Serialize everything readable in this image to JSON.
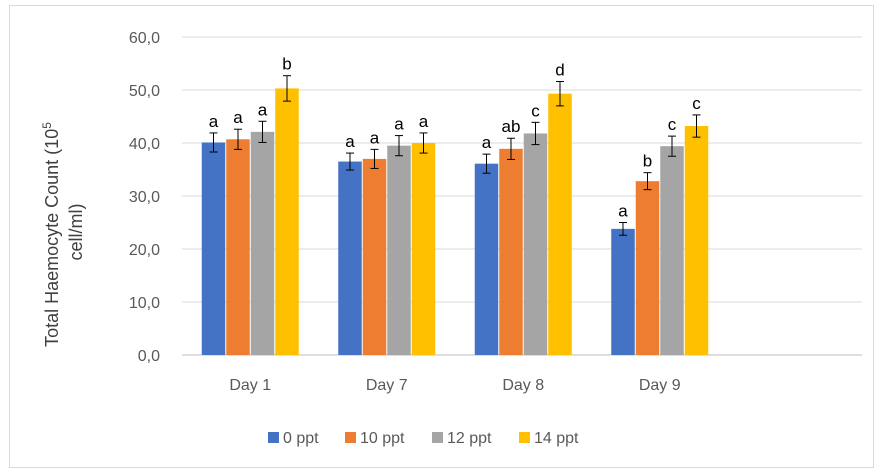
{
  "chart_data": {
    "type": "bar",
    "title": "",
    "ylabel_line1": "Total Haemocyte Count (10",
    "ylabel_sup": "5",
    "ylabel_line2": "cell/ml)",
    "xlabel": "",
    "ylim": [
      0,
      60
    ],
    "yticks": [
      "0,0",
      "10,0",
      "20,0",
      "30,0",
      "40,0",
      "50,0",
      "60,0"
    ],
    "grid": true,
    "legend_position": "bottom",
    "categories": [
      "Day 1",
      "Day 7",
      "Day 8",
      "Day 9"
    ],
    "series": [
      {
        "name": "0 ppt",
        "color": "#4472c4",
        "values": [
          40.1,
          36.5,
          36.1,
          23.8
        ],
        "errors": [
          1.8,
          1.6,
          1.8,
          1.2
        ],
        "labels": [
          "a",
          "a",
          "a",
          "a"
        ]
      },
      {
        "name": "10 ppt",
        "color": "#ed7d31",
        "values": [
          40.7,
          37.0,
          38.9,
          32.8
        ],
        "errors": [
          1.9,
          1.8,
          2.0,
          1.6
        ],
        "labels": [
          "a",
          "a",
          "ab",
          "b"
        ]
      },
      {
        "name": "12 ppt",
        "color": "#a5a5a5",
        "values": [
          42.1,
          39.5,
          41.8,
          39.4
        ],
        "errors": [
          2.0,
          1.9,
          2.1,
          1.9
        ],
        "labels": [
          "a",
          "a",
          "c",
          "c"
        ]
      },
      {
        "name": "14 ppt",
        "color": "#ffc000",
        "values": [
          50.3,
          40.0,
          49.3,
          43.2
        ],
        "errors": [
          2.4,
          1.9,
          2.3,
          2.1
        ],
        "labels": [
          "b",
          "a",
          "d",
          "c"
        ]
      }
    ],
    "gridline_color": "#d9d9d9",
    "axis_color": "#bfbfbf"
  }
}
